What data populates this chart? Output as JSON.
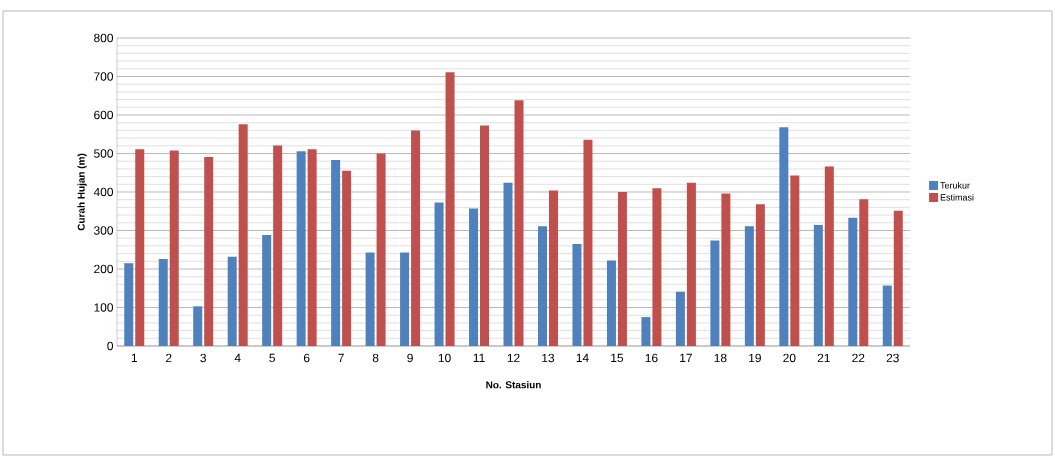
{
  "chart_data": {
    "type": "bar",
    "xlabel": "No. Stasiun",
    "ylabel": "Curah Hujan (m)",
    "categories": [
      "1",
      "2",
      "3",
      "4",
      "5",
      "6",
      "7",
      "8",
      "9",
      "10",
      "11",
      "12",
      "13",
      "14",
      "15",
      "16",
      "17",
      "18",
      "19",
      "20",
      "21",
      "22",
      "23"
    ],
    "series": [
      {
        "name": "Terukur",
        "color": "#4f81bd",
        "values": [
          215,
          226,
          103,
          232,
          288,
          506,
          483,
          243,
          243,
          373,
          357,
          424,
          311,
          265,
          222,
          75,
          141,
          274,
          311,
          568,
          314,
          333,
          157
        ]
      },
      {
        "name": "Estimasi",
        "color": "#c0504d",
        "values": [
          511,
          508,
          491,
          576,
          521,
          511,
          455,
          500,
          560,
          711,
          573,
          638,
          404,
          536,
          400,
          410,
          424,
          396,
          368,
          443,
          466,
          381,
          351
        ]
      }
    ],
    "ylim": [
      0,
      800
    ],
    "yticks": [
      0,
      100,
      200,
      300,
      400,
      500,
      600,
      700,
      800
    ],
    "grid": "y",
    "legend": "right"
  }
}
